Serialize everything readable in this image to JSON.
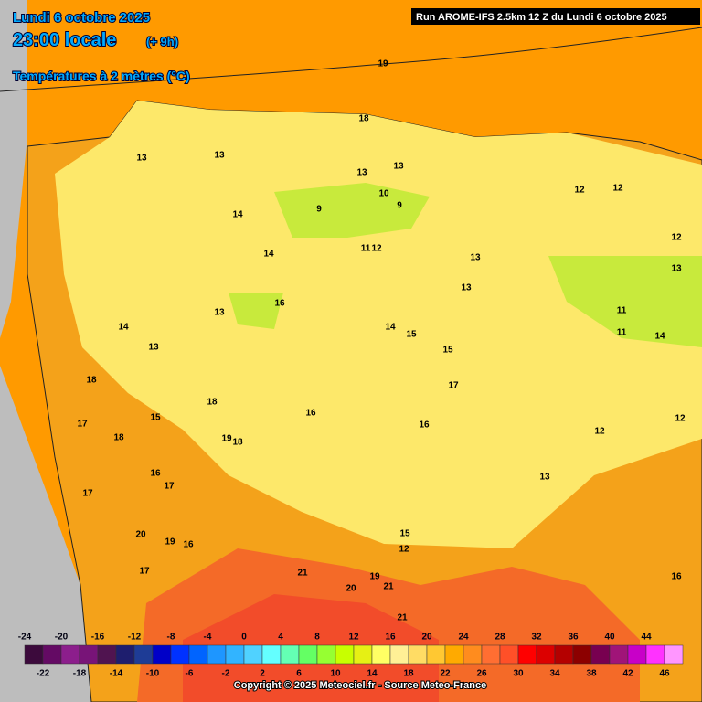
{
  "header": {
    "date": "Lundi 6 octobre 2025",
    "time": "23:00 locale",
    "offset": "(+ 9h)",
    "parameter": "Températures à 2 mètres (°C)",
    "run": "Run AROME-IFS 2.5km 12 Z du Lundi 6 octobre 2025"
  },
  "contour_labels": [
    "19",
    "18",
    "13",
    "13",
    "13",
    "10",
    "9",
    "9",
    "14",
    "11",
    "12",
    "13",
    "12",
    "12",
    "12",
    "13",
    "14",
    "13",
    "13",
    "13",
    "11",
    "14",
    "14",
    "15",
    "15",
    "14",
    "17",
    "13",
    "18",
    "18",
    "17",
    "15",
    "18",
    "19",
    "18",
    "16",
    "16",
    "17",
    "16",
    "12",
    "17",
    "12",
    "13",
    "16",
    "20",
    "19",
    "16",
    "17",
    "15",
    "11",
    "12",
    "19",
    "21",
    "20",
    "21",
    "21",
    "16"
  ],
  "legend": {
    "ticks": [
      -24,
      -22,
      -20,
      -18,
      -16,
      -14,
      -12,
      -10,
      -8,
      -6,
      -4,
      -2,
      0,
      2,
      4,
      6,
      8,
      10,
      12,
      14,
      16,
      18,
      20,
      22,
      24,
      26,
      28,
      30,
      32,
      34,
      36,
      38,
      40,
      42,
      44,
      46
    ],
    "colors": [
      "#3c0a3c",
      "#640a64",
      "#8c1e8c",
      "#781478",
      "#501450",
      "#1e1e6e",
      "#1e3c96",
      "#0000c8",
      "#0032ff",
      "#0064ff",
      "#1e96ff",
      "#32b4ff",
      "#50d2ff",
      "#64ffff",
      "#64ffb4",
      "#64ff64",
      "#96ff32",
      "#c8ff00",
      "#e6f014",
      "#ffff64",
      "#fff096",
      "#ffdc64",
      "#ffc832",
      "#ffaa00",
      "#ff8c1e",
      "#ff6e32",
      "#ff5028",
      "#ff0000",
      "#dc0000",
      "#b40000",
      "#8c0000",
      "#780050",
      "#a01478",
      "#c800c8",
      "#ff32ff",
      "#ff96ff"
    ]
  },
  "footer": {
    "copyright": "Copyright © 2025 Meteociel.fr - Source Meteo-France"
  }
}
